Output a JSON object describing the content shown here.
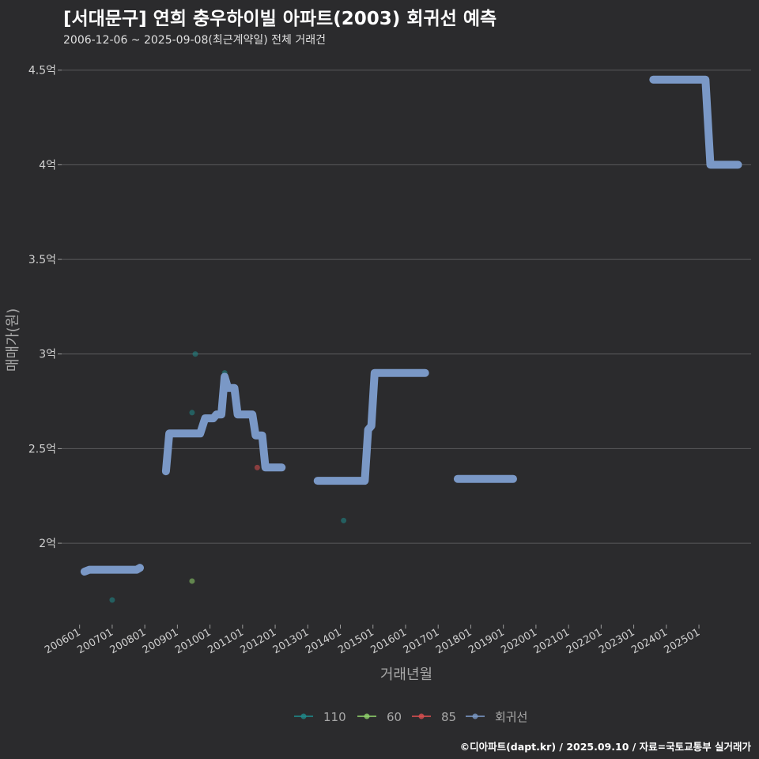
{
  "chart_data": {
    "type": "line",
    "title": "[서대문구] 연희 충우하이빌 아파트(2003) 회귀선 예측",
    "subtitle": "2006-12-06 ~ 2025-09-08(최근계약일) 전체 거래건",
    "xlabel": "거래년월",
    "ylabel": "매매가(원)",
    "y_ticks": [
      {
        "value": 2.0,
        "label": "2억"
      },
      {
        "value": 2.5,
        "label": "2.5억"
      },
      {
        "value": 3.0,
        "label": "3억"
      },
      {
        "value": 3.5,
        "label": "3.5억"
      },
      {
        "value": 4.0,
        "label": "4억"
      },
      {
        "value": 4.5,
        "label": "4.5억"
      }
    ],
    "ylim": [
      1.57,
      4.62
    ],
    "xlim": [
      2005.45,
      2026.6
    ],
    "grid": true,
    "legend_position": "bottom",
    "x_ticks": [
      "200601",
      "200701",
      "200801",
      "200901",
      "201001",
      "201101",
      "201201",
      "201301",
      "201401",
      "201501",
      "201601",
      "201701",
      "201801",
      "201901",
      "202001",
      "202101",
      "202201",
      "202301",
      "202401",
      "202501"
    ],
    "series": [
      {
        "name": "110",
        "color": "#1f8a8a",
        "kind": "points",
        "points": [
          [
            2007.0,
            1.7
          ],
          [
            2009.45,
            2.69
          ],
          [
            2009.55,
            3.0
          ],
          [
            2010.45,
            2.9
          ],
          [
            2014.1,
            2.12
          ]
        ]
      },
      {
        "name": "60",
        "color": "#8fd16a",
        "kind": "points",
        "points": [
          [
            2009.45,
            1.8
          ]
        ]
      },
      {
        "name": "85",
        "color": "#d94f4f",
        "kind": "points",
        "points": [
          [
            2011.45,
            2.4
          ]
        ]
      },
      {
        "name": "회귀선",
        "color": "#7a98c6",
        "kind": "line",
        "segments": [
          [
            [
              2006.15,
              1.85
            ],
            [
              2006.3,
              1.86
            ],
            [
              2007.75,
              1.86
            ],
            [
              2007.85,
              1.87
            ]
          ],
          [
            [
              2008.65,
              2.38
            ],
            [
              2008.75,
              2.58
            ],
            [
              2009.7,
              2.58
            ],
            [
              2009.85,
              2.66
            ],
            [
              2010.1,
              2.66
            ],
            [
              2010.2,
              2.68
            ],
            [
              2010.35,
              2.68
            ],
            [
              2010.45,
              2.88
            ],
            [
              2010.55,
              2.82
            ],
            [
              2010.75,
              2.82
            ],
            [
              2010.85,
              2.68
            ],
            [
              2011.3,
              2.68
            ],
            [
              2011.4,
              2.57
            ],
            [
              2011.6,
              2.57
            ],
            [
              2011.7,
              2.4
            ],
            [
              2012.2,
              2.4
            ]
          ],
          [
            [
              2013.3,
              2.33
            ],
            [
              2014.75,
              2.33
            ],
            [
              2014.85,
              2.6
            ],
            [
              2014.95,
              2.62
            ],
            [
              2015.05,
              2.9
            ],
            [
              2016.6,
              2.9
            ]
          ],
          [
            [
              2017.6,
              2.34
            ],
            [
              2019.3,
              2.34
            ]
          ],
          [
            [
              2023.6,
              4.45
            ],
            [
              2025.2,
              4.45
            ],
            [
              2025.35,
              4.0
            ],
            [
              2026.2,
              4.0
            ]
          ]
        ]
      }
    ]
  },
  "credit": "©디아파트(dapt.kr) / 2025.09.10 / 자료=국토교통부 실거래가"
}
